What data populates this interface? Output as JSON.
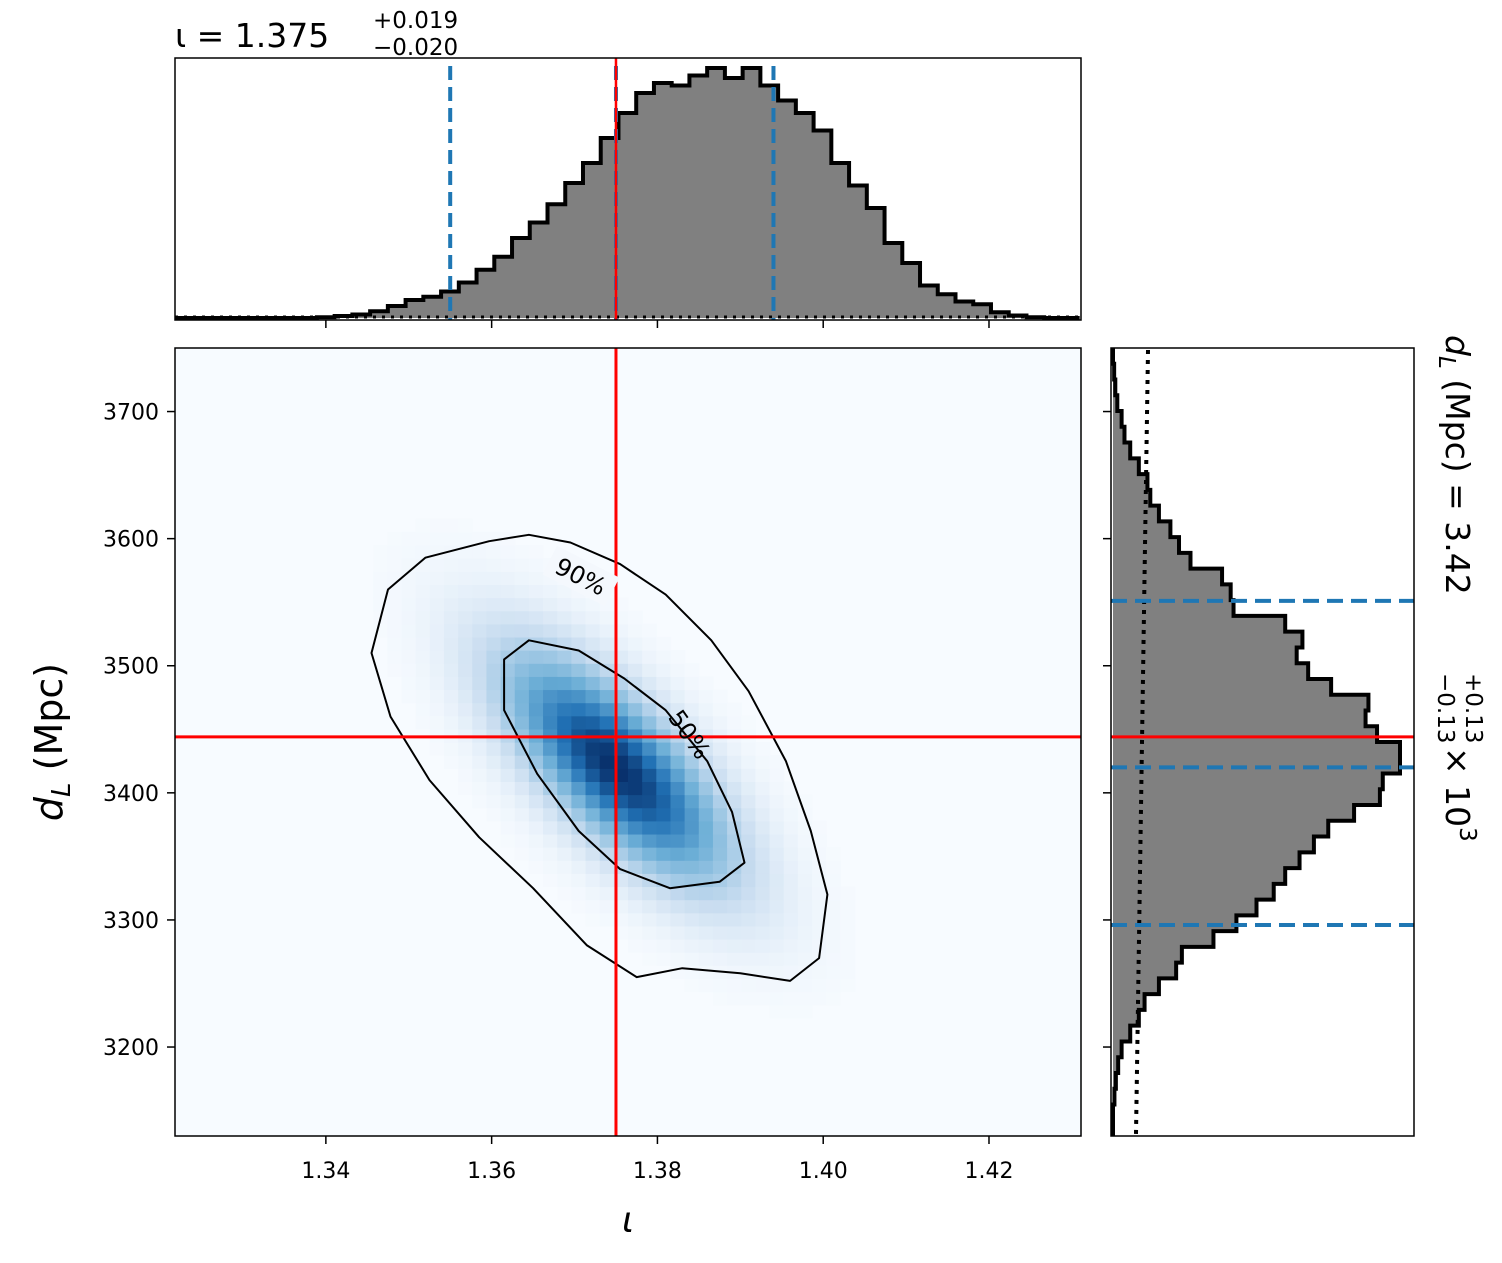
{
  "colors": {
    "hist_fill": "#808080",
    "hist_edge": "#000000",
    "truth_line": "#ff0000",
    "quantile_line": "#1f77b4",
    "density_low": "#f7fbff",
    "density_high": "#08306b"
  },
  "labels": {
    "iota_title_main": "ι = 1.375",
    "iota_title_sup": "+0.019",
    "iota_title_sub": "−0.020",
    "dl_title_main": "dL (Mpc) = 3.42",
    "dl_title_sup": "+0.13",
    "dl_title_sub": "−0.13",
    "dl_title_tail": "× 10³",
    "dl_title_var": "d",
    "dl_title_var_sub": "L",
    "dl_title_rest": " (Mpc) = 3.42",
    "dl_title_exp_base": " × 10",
    "dl_title_exp": "3",
    "xlabel": "ι",
    "ylabel_var": "d",
    "ylabel_sub": "L",
    "ylabel_rest": " (Mpc)",
    "contour_90": "90%",
    "contour_50": "50%"
  },
  "chart_data": [
    {
      "type": "bar",
      "panel": "iota marginal histogram (top)",
      "xlim": [
        1.3218,
        1.4311
      ],
      "bin_edges_start": 1.3218,
      "bin_width": 0.00214,
      "relative_counts": [
        0.0,
        0.0,
        0.0,
        0.0,
        0.0,
        0.0,
        0.0,
        0.0,
        0.003,
        0.008,
        0.014,
        0.027,
        0.048,
        0.072,
        0.085,
        0.106,
        0.142,
        0.193,
        0.245,
        0.32,
        0.382,
        0.455,
        0.54,
        0.62,
        0.72,
        0.82,
        0.9,
        0.94,
        0.93,
        0.97,
        1.0,
        0.96,
        1.0,
        0.93,
        0.87,
        0.82,
        0.75,
        0.62,
        0.53,
        0.44,
        0.3,
        0.22,
        0.13,
        0.095,
        0.066,
        0.055,
        0.023,
        0.01,
        0.003,
        0.0,
        0.0
      ],
      "truth": 1.375,
      "quantiles": [
        1.355,
        1.375,
        1.394
      ]
    },
    {
      "type": "heatmap",
      "panel": "joint posterior (iota vs dL)",
      "xlabel": "ι",
      "ylabel": "dL (Mpc)",
      "xlim": [
        1.3218,
        1.4311
      ],
      "ylim": [
        3130,
        3750
      ],
      "xticks": [
        "1.34",
        "1.36",
        "1.38",
        "1.40",
        "1.42"
      ],
      "yticks": [
        "3200",
        "3300",
        "3400",
        "3500",
        "3600",
        "3700"
      ],
      "xtick_values": [
        1.34,
        1.36,
        1.38,
        1.4,
        1.42
      ],
      "ytick_values": [
        3200,
        3300,
        3400,
        3500,
        3600,
        3700
      ],
      "truth": {
        "iota": 1.375,
        "dL": 3444
      },
      "density_center": {
        "iota": 1.375,
        "dL": 3420
      },
      "correlation": -0.72,
      "sigma_iota": 0.0097,
      "sigma_dL": 64,
      "contour_levels": [
        "50%",
        "90%"
      ],
      "contour_90": [
        [
          1.3597,
          3598
        ],
        [
          1.3645,
          3603
        ],
        [
          1.3695,
          3597
        ],
        [
          1.3755,
          3580
        ],
        [
          1.381,
          3556
        ],
        [
          1.3865,
          3520
        ],
        [
          1.391,
          3480
        ],
        [
          1.3955,
          3425
        ],
        [
          1.3985,
          3370
        ],
        [
          1.4005,
          3320
        ],
        [
          1.3995,
          3270
        ],
        [
          1.396,
          3252
        ],
        [
          1.39,
          3258
        ],
        [
          1.383,
          3262
        ],
        [
          1.3775,
          3255
        ],
        [
          1.3715,
          3280
        ],
        [
          1.365,
          3325
        ],
        [
          1.3585,
          3365
        ],
        [
          1.3525,
          3410
        ],
        [
          1.3478,
          3460
        ],
        [
          1.3455,
          3510
        ],
        [
          1.3475,
          3560
        ],
        [
          1.352,
          3585
        ]
      ],
      "contour_50": [
        [
          1.3645,
          3520
        ],
        [
          1.3705,
          3512
        ],
        [
          1.376,
          3490
        ],
        [
          1.381,
          3465
        ],
        [
          1.386,
          3425
        ],
        [
          1.389,
          3385
        ],
        [
          1.3905,
          3345
        ],
        [
          1.3875,
          3330
        ],
        [
          1.3815,
          3325
        ],
        [
          1.3755,
          3340
        ],
        [
          1.3705,
          3370
        ],
        [
          1.3655,
          3415
        ],
        [
          1.3615,
          3465
        ],
        [
          1.3615,
          3505
        ]
      ]
    },
    {
      "type": "bar",
      "panel": "dL marginal histogram (right, horizontal)",
      "ylim": [
        3130,
        3750
      ],
      "bin_edges_start": 3130,
      "bin_width": 12.4,
      "relative_counts": [
        0.0,
        0.0,
        0.005,
        0.01,
        0.018,
        0.03,
        0.06,
        0.09,
        0.11,
        0.16,
        0.22,
        0.24,
        0.35,
        0.43,
        0.5,
        0.56,
        0.6,
        0.65,
        0.7,
        0.75,
        0.84,
        0.93,
        0.94,
        1.0,
        1.0,
        0.92,
        0.88,
        0.89,
        0.76,
        0.68,
        0.64,
        0.66,
        0.6,
        0.42,
        0.41,
        0.38,
        0.27,
        0.23,
        0.2,
        0.16,
        0.13,
        0.12,
        0.09,
        0.06,
        0.04,
        0.03,
        0.015,
        0.008,
        0.004,
        0.0
      ],
      "truth": 3444,
      "quantiles": [
        3296,
        3420,
        3551
      ]
    }
  ]
}
